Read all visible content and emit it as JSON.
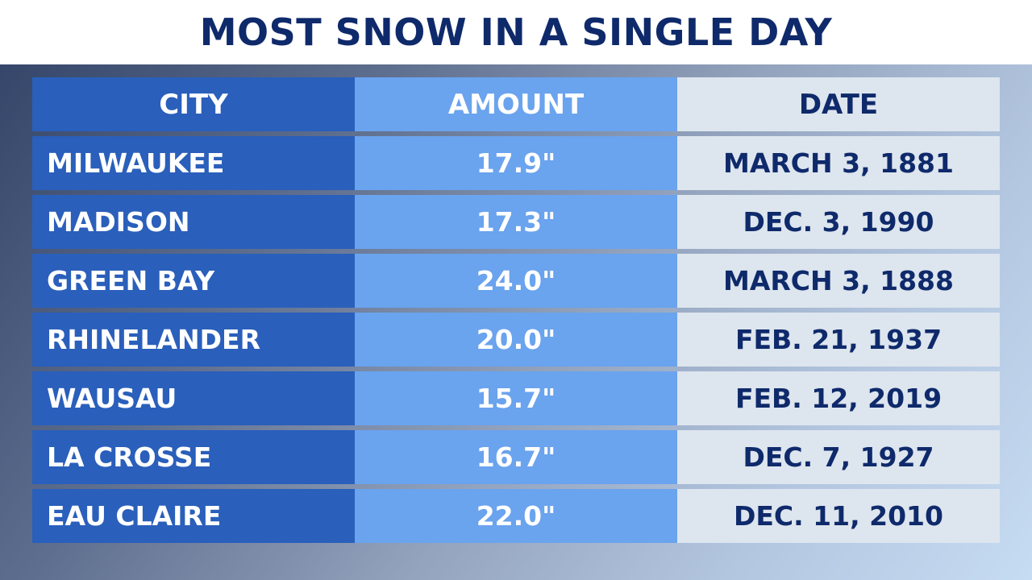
{
  "title": "MOST SNOW IN A SINGLE DAY",
  "colors": {
    "title": "#0f2a6b",
    "city_column": "#2a5fbb",
    "amount_column": "#6aa3ee",
    "date_column": "#dde5ee",
    "date_text": "#0f2a6b"
  },
  "chart_data": {
    "type": "table",
    "title": "MOST SNOW IN A SINGLE DAY",
    "columns": [
      "CITY",
      "AMOUNT",
      "DATE"
    ],
    "rows": [
      {
        "city": "MILWAUKEE",
        "amount": "17.9\"",
        "date": "MARCH 3, 1881"
      },
      {
        "city": "MADISON",
        "amount": "17.3\"",
        "date": "DEC. 3, 1990"
      },
      {
        "city": "GREEN BAY",
        "amount": "24.0\"",
        "date": "MARCH 3, 1888"
      },
      {
        "city": "RHINELANDER",
        "amount": "20.0\"",
        "date": "FEB. 21, 1937"
      },
      {
        "city": "WAUSAU",
        "amount": "15.7\"",
        "date": "FEB. 12, 2019"
      },
      {
        "city": "LA CROSSE",
        "amount": "16.7\"",
        "date": "DEC. 7, 1927"
      },
      {
        "city": "EAU CLAIRE",
        "amount": "22.0\"",
        "date": "DEC. 11, 2010"
      }
    ]
  }
}
